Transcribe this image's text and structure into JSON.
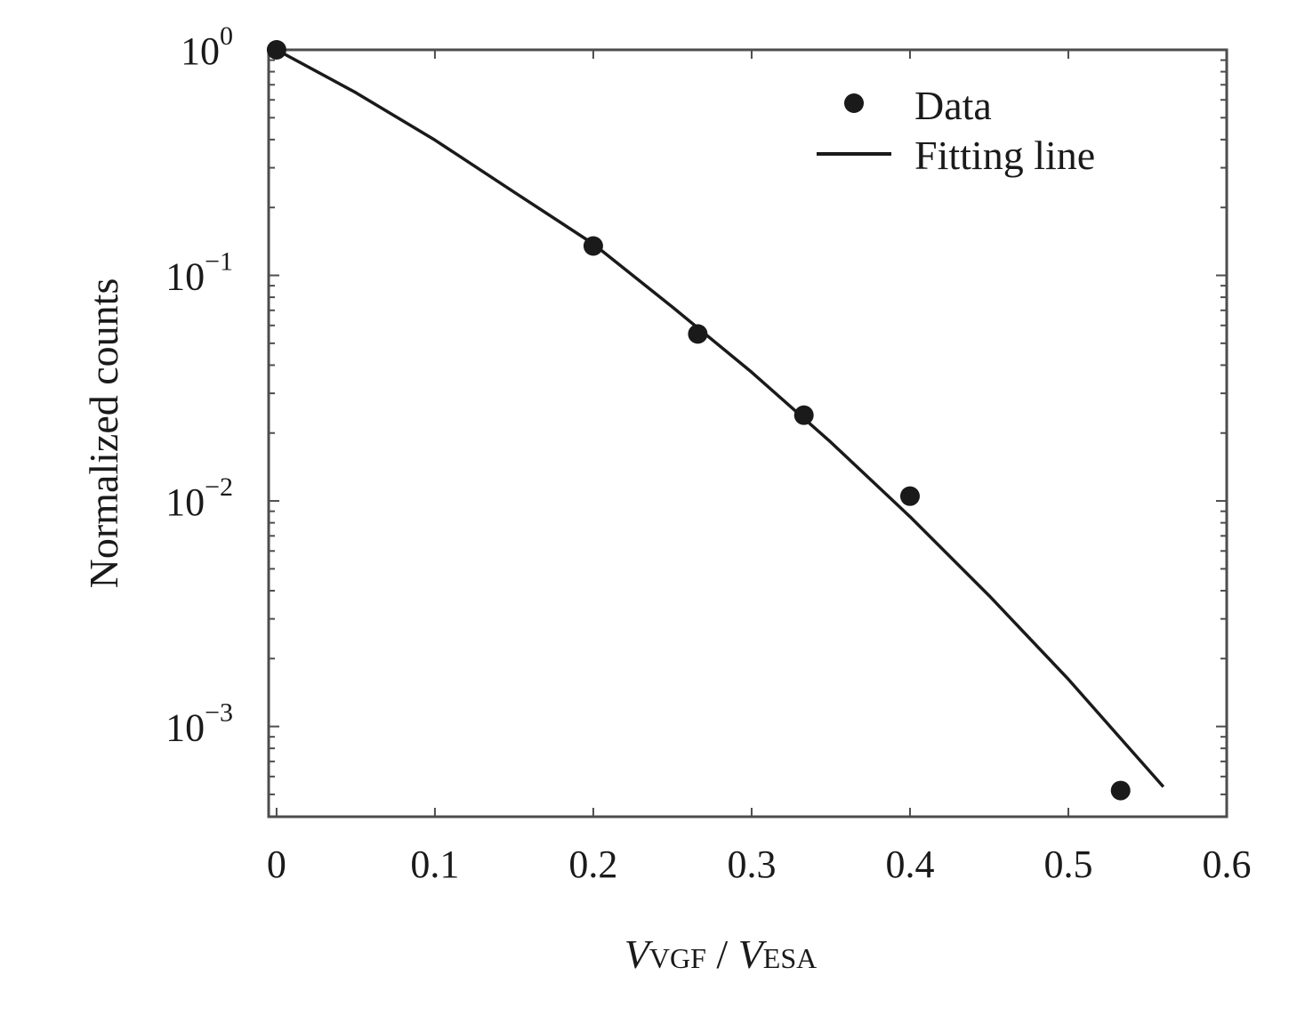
{
  "chart_data": {
    "type": "scatter",
    "title": "",
    "xlabel": {
      "main1": "V",
      "sub1": "VGF",
      "sep": " / ",
      "main2": "V",
      "sub2": "ESA"
    },
    "ylabel": "Normalized counts",
    "xlim": [
      -0.005,
      0.6
    ],
    "ylim_log10": [
      -3.4,
      0.0
    ],
    "y_scale": "log",
    "x_ticks": [
      {
        "value": 0,
        "label": "0"
      },
      {
        "value": 0.1,
        "label": "0.1"
      },
      {
        "value": 0.2,
        "label": "0.2"
      },
      {
        "value": 0.3,
        "label": "0.3"
      },
      {
        "value": 0.4,
        "label": "0.4"
      },
      {
        "value": 0.5,
        "label": "0.5"
      },
      {
        "value": 0.6,
        "label": "0.6"
      }
    ],
    "y_ticks": [
      {
        "value": 1,
        "base": "10",
        "exp": "0"
      },
      {
        "value": 0.1,
        "base": "10",
        "exp": "−1"
      },
      {
        "value": 0.01,
        "base": "10",
        "exp": "−2"
      },
      {
        "value": 0.001,
        "base": "10",
        "exp": "−3"
      }
    ],
    "grid": false,
    "legend_position": "top-right",
    "series": [
      {
        "name": "Data",
        "kind": "markers",
        "color": "#1a1a1a",
        "x": [
          0.0,
          0.2,
          0.266,
          0.333,
          0.4,
          0.533
        ],
        "y": [
          1.0,
          0.135,
          0.055,
          0.024,
          0.0105,
          0.00052
        ]
      },
      {
        "name": "Fitting line",
        "kind": "line",
        "color": "#1a1a1a",
        "x": [
          0.0,
          0.05,
          0.1,
          0.15,
          0.2,
          0.25,
          0.3,
          0.35,
          0.4,
          0.45,
          0.5,
          0.56
        ],
        "y": [
          1.0,
          0.646,
          0.398,
          0.234,
          0.138,
          0.0724,
          0.0372,
          0.0182,
          0.00851,
          0.0038,
          0.00162,
          0.00054
        ]
      }
    ]
  }
}
